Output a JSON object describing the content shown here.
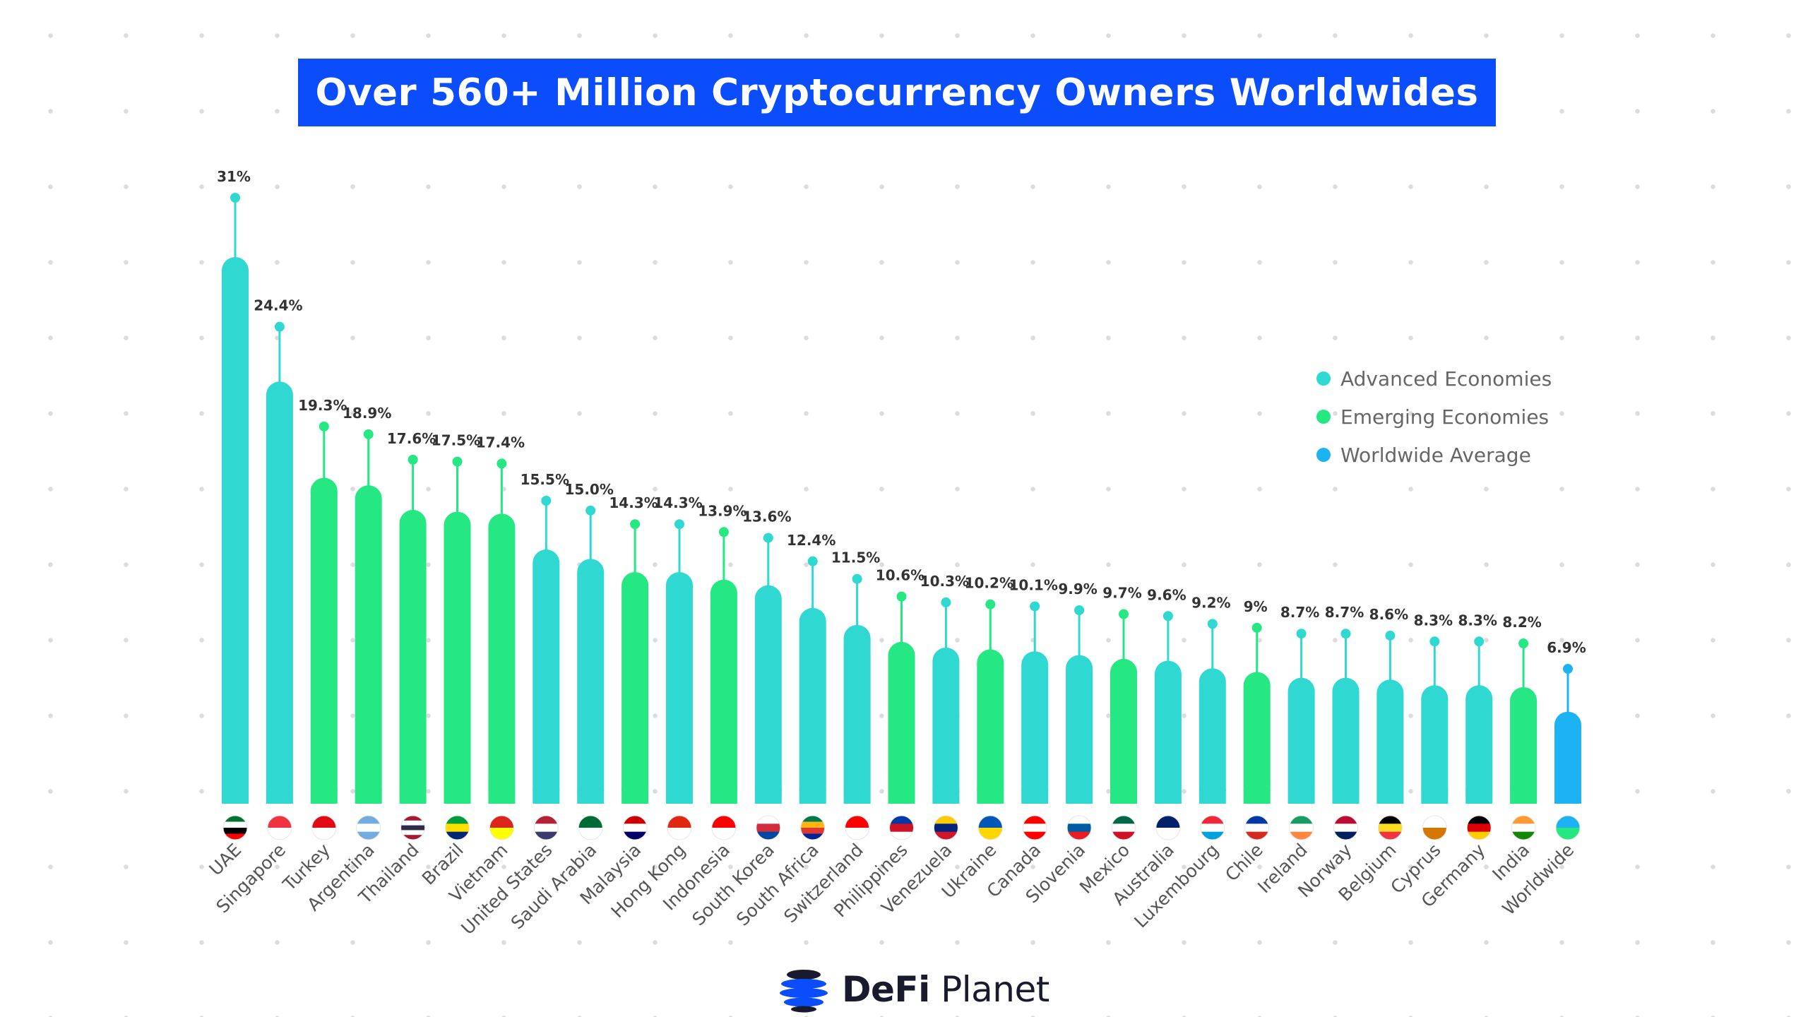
{
  "title": "Over 560+ Million Cryptocurrency Owners Worldwides",
  "brand": {
    "name_bold": "DeFi",
    "name_regular": "Planet",
    "icon": "globe-swirl-logo-icon"
  },
  "colors": {
    "title_bg": "#0b4dfb",
    "Advanced Economies": "#2fd8d0",
    "Emerging Economies": "#25e882",
    "Worldwide Average": "#1db2f2"
  },
  "chart_data": {
    "type": "bar",
    "style": "lollipop bars with flag icons under each bar",
    "title": "Over 560+ Million Cryptocurrency Owners Worldwides",
    "xlabel": "",
    "ylabel": "",
    "grid": false,
    "legend_position": "right",
    "legend": [
      "Advanced Economies",
      "Emerging Economies",
      "Worldwide Average"
    ],
    "categories": [
      "UAE",
      "Singapore",
      "Turkey",
      "Argentina",
      "Thailand",
      "Brazil",
      "Vietnam",
      "United States",
      "Saudi Arabia",
      "Malaysia",
      "Hong Kong",
      "Indonesia",
      "South Korea",
      "South Africa",
      "Switzerland",
      "Philippines",
      "Venezuela",
      "Ukraine",
      "Canada",
      "Slovenia",
      "Mexico",
      "Australia",
      "Luxembourg",
      "Chile",
      "Ireland",
      "Norway",
      "Belgium",
      "Cyprus",
      "Germany",
      "India",
      "Worldwide"
    ],
    "values": [
      31,
      24.4,
      19.3,
      18.9,
      17.6,
      17.5,
      17.4,
      15.5,
      15.0,
      14.3,
      14.3,
      13.9,
      13.6,
      12.4,
      11.5,
      10.6,
      10.3,
      10.2,
      10.1,
      9.9,
      9.7,
      9.6,
      9.2,
      9,
      8.7,
      8.7,
      8.6,
      8.3,
      8.3,
      8.2,
      6.9
    ],
    "value_labels": [
      "31%",
      "24.4%",
      "19.3%",
      "18.9%",
      "17.6%",
      "17.5%",
      "17.4%",
      "15.5%",
      "15.0%",
      "14.3%",
      "14.3%",
      "13.9%",
      "13.6%",
      "12.4%",
      "11.5%",
      "10.6%",
      "10.3%",
      "10.2%",
      "10.1%",
      "9.9%",
      "9.7%",
      "9.6%",
      "9.2%",
      "9%",
      "8.7%",
      "8.7%",
      "8.6%",
      "8.3%",
      "8.3%",
      "8.2%",
      "6.9%"
    ],
    "groups": [
      "Advanced Economies",
      "Advanced Economies",
      "Emerging Economies",
      "Emerging Economies",
      "Emerging Economies",
      "Emerging Economies",
      "Emerging Economies",
      "Advanced Economies",
      "Advanced Economies",
      "Emerging Economies",
      "Advanced Economies",
      "Emerging Economies",
      "Advanced Economies",
      "Advanced Economies",
      "Advanced Economies",
      "Emerging Economies",
      "Advanced Economies",
      "Emerging Economies",
      "Advanced Economies",
      "Advanced Economies",
      "Emerging Economies",
      "Advanced Economies",
      "Advanced Economies",
      "Emerging Economies",
      "Advanced Economies",
      "Advanced Economies",
      "Advanced Economies",
      "Advanced Economies",
      "Advanced Economies",
      "Emerging Economies",
      "Worldwide Average"
    ],
    "flags": [
      {
        "icon": "uae-flag-icon",
        "colors": [
          "#00732f",
          "#ffffff",
          "#000000",
          "#ff0000"
        ]
      },
      {
        "icon": "singapore-flag-icon",
        "colors": [
          "#ef3340",
          "#ffffff"
        ]
      },
      {
        "icon": "turkey-flag-icon",
        "colors": [
          "#e30a17",
          "#ffffff"
        ]
      },
      {
        "icon": "argentina-flag-icon",
        "colors": [
          "#74acdf",
          "#ffffff",
          "#74acdf"
        ]
      },
      {
        "icon": "thailand-flag-icon",
        "colors": [
          "#a51931",
          "#ffffff",
          "#2d2a4a",
          "#ffffff",
          "#a51931"
        ]
      },
      {
        "icon": "brazil-flag-icon",
        "colors": [
          "#009c3b",
          "#ffdf00",
          "#002776"
        ]
      },
      {
        "icon": "vietnam-flag-icon",
        "colors": [
          "#da251d",
          "#ffff00"
        ]
      },
      {
        "icon": "united-states-flag-icon",
        "colors": [
          "#b22234",
          "#ffffff",
          "#3c3b6e"
        ]
      },
      {
        "icon": "saudi-arabia-flag-icon",
        "colors": [
          "#006c35",
          "#ffffff"
        ]
      },
      {
        "icon": "malaysia-flag-icon",
        "colors": [
          "#cc0001",
          "#ffffff",
          "#010066"
        ]
      },
      {
        "icon": "hong-kong-flag-icon",
        "colors": [
          "#de2910",
          "#ffffff"
        ]
      },
      {
        "icon": "indonesia-flag-icon",
        "colors": [
          "#ff0000",
          "#ffffff"
        ]
      },
      {
        "icon": "south-korea-flag-icon",
        "colors": [
          "#ffffff",
          "#cd2e3a",
          "#0047a0"
        ]
      },
      {
        "icon": "south-africa-flag-icon",
        "colors": [
          "#007a4d",
          "#ffb612",
          "#de3831",
          "#002395"
        ]
      },
      {
        "icon": "switzerland-flag-icon",
        "colors": [
          "#ff0000",
          "#ffffff"
        ]
      },
      {
        "icon": "philippines-flag-icon",
        "colors": [
          "#0038a8",
          "#ce1126",
          "#ffffff"
        ]
      },
      {
        "icon": "venezuela-flag-icon",
        "colors": [
          "#ffcc00",
          "#00247d",
          "#cf142b"
        ]
      },
      {
        "icon": "ukraine-flag-icon",
        "colors": [
          "#0057b7",
          "#ffd700"
        ]
      },
      {
        "icon": "canada-flag-icon",
        "colors": [
          "#ff0000",
          "#ffffff",
          "#ff0000"
        ]
      },
      {
        "icon": "slovenia-flag-icon",
        "colors": [
          "#ffffff",
          "#005da4",
          "#ed1c24"
        ]
      },
      {
        "icon": "mexico-flag-icon",
        "colors": [
          "#006847",
          "#ffffff",
          "#ce1126"
        ]
      },
      {
        "icon": "australia-flag-icon",
        "colors": [
          "#012169",
          "#ffffff"
        ]
      },
      {
        "icon": "luxembourg-flag-icon",
        "colors": [
          "#ed2939",
          "#ffffff",
          "#00a1de"
        ]
      },
      {
        "icon": "chile-flag-icon",
        "colors": [
          "#0039a6",
          "#ffffff",
          "#d52b1e"
        ]
      },
      {
        "icon": "ireland-flag-icon",
        "colors": [
          "#169b62",
          "#ffffff",
          "#ff883e"
        ]
      },
      {
        "icon": "norway-flag-icon",
        "colors": [
          "#ba0c2f",
          "#ffffff",
          "#00205b"
        ]
      },
      {
        "icon": "belgium-flag-icon",
        "colors": [
          "#000000",
          "#fdda24",
          "#ef3340"
        ]
      },
      {
        "icon": "cyprus-flag-icon",
        "colors": [
          "#ffffff",
          "#d57800"
        ]
      },
      {
        "icon": "germany-flag-icon",
        "colors": [
          "#000000",
          "#dd0000",
          "#ffce00"
        ]
      },
      {
        "icon": "india-flag-icon",
        "colors": [
          "#ff9933",
          "#ffffff",
          "#138808"
        ]
      },
      {
        "icon": "worldwide-globe-icon",
        "colors": [
          "#1db2f2",
          "#25e882"
        ]
      }
    ]
  }
}
